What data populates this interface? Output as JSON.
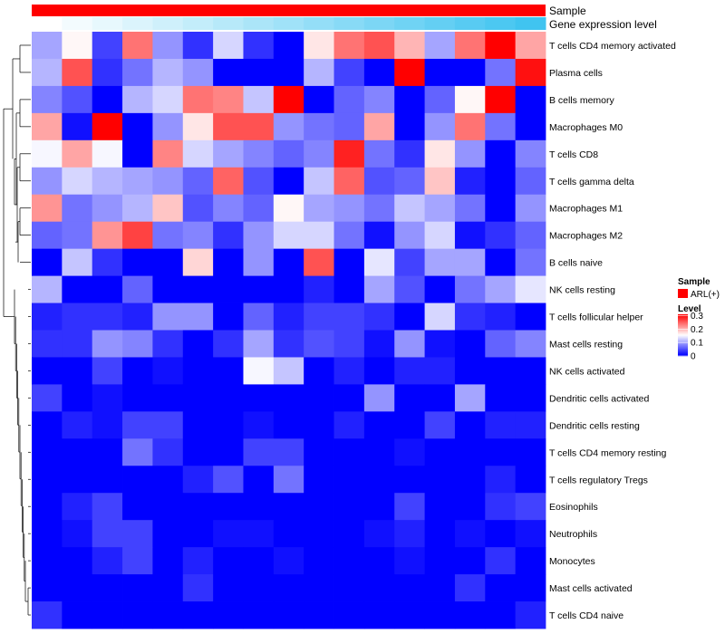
{
  "chart_data": {
    "type": "heatmap",
    "annotations": [
      {
        "label": "Sample",
        "colors_from": "legend.sample"
      },
      {
        "label": "Gene expression level",
        "gradient": [
          "#ffffff",
          "#40c4f0"
        ]
      }
    ],
    "rows": [
      "T cells CD4 memory activated",
      "Plasma cells",
      "B cells memory",
      "Macrophages M0",
      "T cells CD8",
      "T cells gamma delta",
      "Macrophages M1",
      "Macrophages M2",
      "B cells naive",
      "NK cells resting",
      "T cells follicular helper",
      "Mast cells resting",
      "NK cells activated",
      "Dendritic cells activated",
      "Dendritic cells resting",
      "T cells CD4 memory resting",
      "T cells regulatory  Tregs",
      "Eosinophils",
      "Neutrophils",
      "Monocytes",
      "Mast cells activated",
      "T cells CD4 naive"
    ],
    "values": [
      [
        0.1,
        0.16,
        0.04,
        0.24,
        0.09,
        0.03,
        0.13,
        0.03,
        0.0,
        0.17,
        0.24,
        0.26,
        0.2,
        0.1,
        0.24,
        0.31,
        0.21
      ],
      [
        0.11,
        0.26,
        0.03,
        0.07,
        0.11,
        0.09,
        0.0,
        0.0,
        0.0,
        0.11,
        0.04,
        0.0,
        0.31,
        0.0,
        0.0,
        0.07,
        0.3
      ],
      [
        0.08,
        0.05,
        0.0,
        0.11,
        0.13,
        0.24,
        0.23,
        0.12,
        0.31,
        0.0,
        0.06,
        0.08,
        0.0,
        0.06,
        0.16,
        0.31,
        0.0
      ],
      [
        0.21,
        0.01,
        0.31,
        0.0,
        0.09,
        0.17,
        0.26,
        0.26,
        0.09,
        0.07,
        0.06,
        0.21,
        0.0,
        0.09,
        0.24,
        0.07,
        0.0
      ],
      [
        0.15,
        0.21,
        0.15,
        0.0,
        0.23,
        0.13,
        0.1,
        0.08,
        0.06,
        0.08,
        0.29,
        0.07,
        0.03,
        0.17,
        0.09,
        0.0,
        0.08
      ],
      [
        0.09,
        0.13,
        0.11,
        0.1,
        0.09,
        0.06,
        0.25,
        0.05,
        0.0,
        0.12,
        0.25,
        0.05,
        0.06,
        0.19,
        0.02,
        0.0,
        0.06
      ],
      [
        0.22,
        0.07,
        0.09,
        0.11,
        0.19,
        0.05,
        0.08,
        0.06,
        0.16,
        0.1,
        0.09,
        0.07,
        0.12,
        0.1,
        0.07,
        0.0,
        0.09
      ],
      [
        0.06,
        0.07,
        0.22,
        0.27,
        0.07,
        0.08,
        0.03,
        0.09,
        0.13,
        0.13,
        0.07,
        0.01,
        0.09,
        0.13,
        0.01,
        0.03,
        0.06
      ],
      [
        0.0,
        0.12,
        0.03,
        0.0,
        0.0,
        0.18,
        0.0,
        0.09,
        0.0,
        0.26,
        0.0,
        0.14,
        0.04,
        0.1,
        0.1,
        0.0,
        0.07
      ],
      [
        0.11,
        0.0,
        0.0,
        0.06,
        0.0,
        0.0,
        0.0,
        0.0,
        0.0,
        0.02,
        0.0,
        0.1,
        0.05,
        0.0,
        0.07,
        0.1,
        0.14
      ],
      [
        0.02,
        0.03,
        0.03,
        0.02,
        0.09,
        0.09,
        0.0,
        0.06,
        0.02,
        0.04,
        0.04,
        0.03,
        0.0,
        0.13,
        0.03,
        0.02,
        0.0
      ],
      [
        0.03,
        0.03,
        0.09,
        0.08,
        0.03,
        0.0,
        0.03,
        0.1,
        0.03,
        0.05,
        0.04,
        0.01,
        0.09,
        0.01,
        0.0,
        0.06,
        0.08
      ],
      [
        0.0,
        0.0,
        0.04,
        0.0,
        0.01,
        0.0,
        0.0,
        0.15,
        0.12,
        0.0,
        0.02,
        0.0,
        0.02,
        0.02,
        0.0,
        0.0,
        0.0
      ],
      [
        0.04,
        0.0,
        0.01,
        0.0,
        0.0,
        0.0,
        0.0,
        0.0,
        0.0,
        0.0,
        0.0,
        0.09,
        0.0,
        0.0,
        0.1,
        0.0,
        0.0
      ],
      [
        0.0,
        0.02,
        0.01,
        0.04,
        0.04,
        0.0,
        0.0,
        0.01,
        0.0,
        0.0,
        0.02,
        0.0,
        0.0,
        0.04,
        0.0,
        0.02,
        0.02
      ],
      [
        0.0,
        0.0,
        0.0,
        0.07,
        0.03,
        0.0,
        0.0,
        0.04,
        0.04,
        0.0,
        0.0,
        0.0,
        0.01,
        0.0,
        0.0,
        0.0,
        0.0
      ],
      [
        0.0,
        0.0,
        0.0,
        0.0,
        0.0,
        0.02,
        0.05,
        0.0,
        0.07,
        0.0,
        0.0,
        0.0,
        0.0,
        0.0,
        0.0,
        0.02,
        0.0
      ],
      [
        0.0,
        0.02,
        0.04,
        0.0,
        0.0,
        0.0,
        0.0,
        0.0,
        0.0,
        0.0,
        0.0,
        0.0,
        0.04,
        0.0,
        0.0,
        0.03,
        0.04
      ],
      [
        0.0,
        0.01,
        0.04,
        0.04,
        0.0,
        0.0,
        0.01,
        0.01,
        0.0,
        0.0,
        0.0,
        0.01,
        0.02,
        0.0,
        0.01,
        0.0,
        0.01
      ],
      [
        0.0,
        0.0,
        0.02,
        0.04,
        0.0,
        0.02,
        0.0,
        0.0,
        0.01,
        0.0,
        0.0,
        0.0,
        0.01,
        0.0,
        0.0,
        0.03,
        0.0
      ],
      [
        0.0,
        0.0,
        0.0,
        0.0,
        0.0,
        0.03,
        0.0,
        0.0,
        0.0,
        0.0,
        0.0,
        0.0,
        0.0,
        0.0,
        0.03,
        0.0,
        0.0
      ],
      [
        0.03,
        0.0,
        0.0,
        0.0,
        0.0,
        0.0,
        0.0,
        0.0,
        0.0,
        0.0,
        0.0,
        0.0,
        0.0,
        0.0,
        0.0,
        0.0,
        0.02
      ]
    ],
    "color_scale": {
      "min": 0,
      "max": 0.31,
      "low": "#0000ff",
      "mid": "#ffffff",
      "high": "#ff0000",
      "mid_value": 0.155
    },
    "legend": {
      "sample": {
        "title": "Sample",
        "items": [
          {
            "label": "ARL(+)",
            "color": "#ff0000"
          }
        ]
      },
      "level": {
        "title": "Level",
        "ticks": [
          "0.3",
          "0.2",
          "0.1",
          "0"
        ],
        "tick_values": [
          0.3,
          0.2,
          0.1,
          0
        ]
      }
    }
  }
}
